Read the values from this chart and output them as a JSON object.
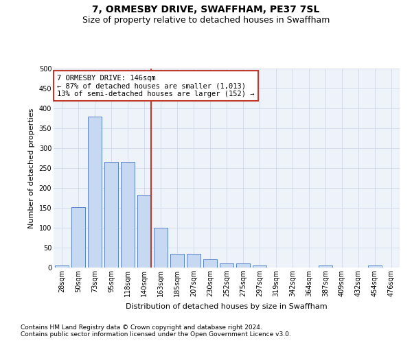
{
  "title": "7, ORMESBY DRIVE, SWAFFHAM, PE37 7SL",
  "subtitle": "Size of property relative to detached houses in Swaffham",
  "xlabel": "Distribution of detached houses by size in Swaffham",
  "ylabel": "Number of detached properties",
  "footnote1": "Contains HM Land Registry data © Crown copyright and database right 2024.",
  "footnote2": "Contains public sector information licensed under the Open Government Licence v3.0.",
  "annotation_line1": "7 ORMESBY DRIVE: 146sqm",
  "annotation_line2": "← 87% of detached houses are smaller (1,013)",
  "annotation_line3": "13% of semi-detached houses are larger (152) →",
  "categories": [
    "28sqm",
    "50sqm",
    "73sqm",
    "95sqm",
    "118sqm",
    "140sqm",
    "163sqm",
    "185sqm",
    "207sqm",
    "230sqm",
    "252sqm",
    "275sqm",
    "297sqm",
    "319sqm",
    "342sqm",
    "364sqm",
    "387sqm",
    "409sqm",
    "432sqm",
    "454sqm",
    "476sqm"
  ],
  "bar_heights": [
    5,
    152,
    380,
    265,
    265,
    182,
    100,
    35,
    35,
    20,
    10,
    10,
    5,
    0,
    0,
    0,
    5,
    0,
    0,
    5,
    0
  ],
  "bar_color": "#c6d9f0",
  "bar_edge_color": "#4472c4",
  "vline_x_index": 5,
  "vline_color": "#c0392b",
  "annotation_box_color": "#c0392b",
  "ylim": [
    0,
    500
  ],
  "yticks": [
    0,
    50,
    100,
    150,
    200,
    250,
    300,
    350,
    400,
    450,
    500
  ],
  "grid_color": "#d0d8e8",
  "bg_color": "#eef2f9",
  "title_fontsize": 10,
  "subtitle_fontsize": 9,
  "axis_label_fontsize": 8,
  "tick_fontsize": 7,
  "annotation_fontsize": 7.5,
  "footnote_fontsize": 6.5
}
